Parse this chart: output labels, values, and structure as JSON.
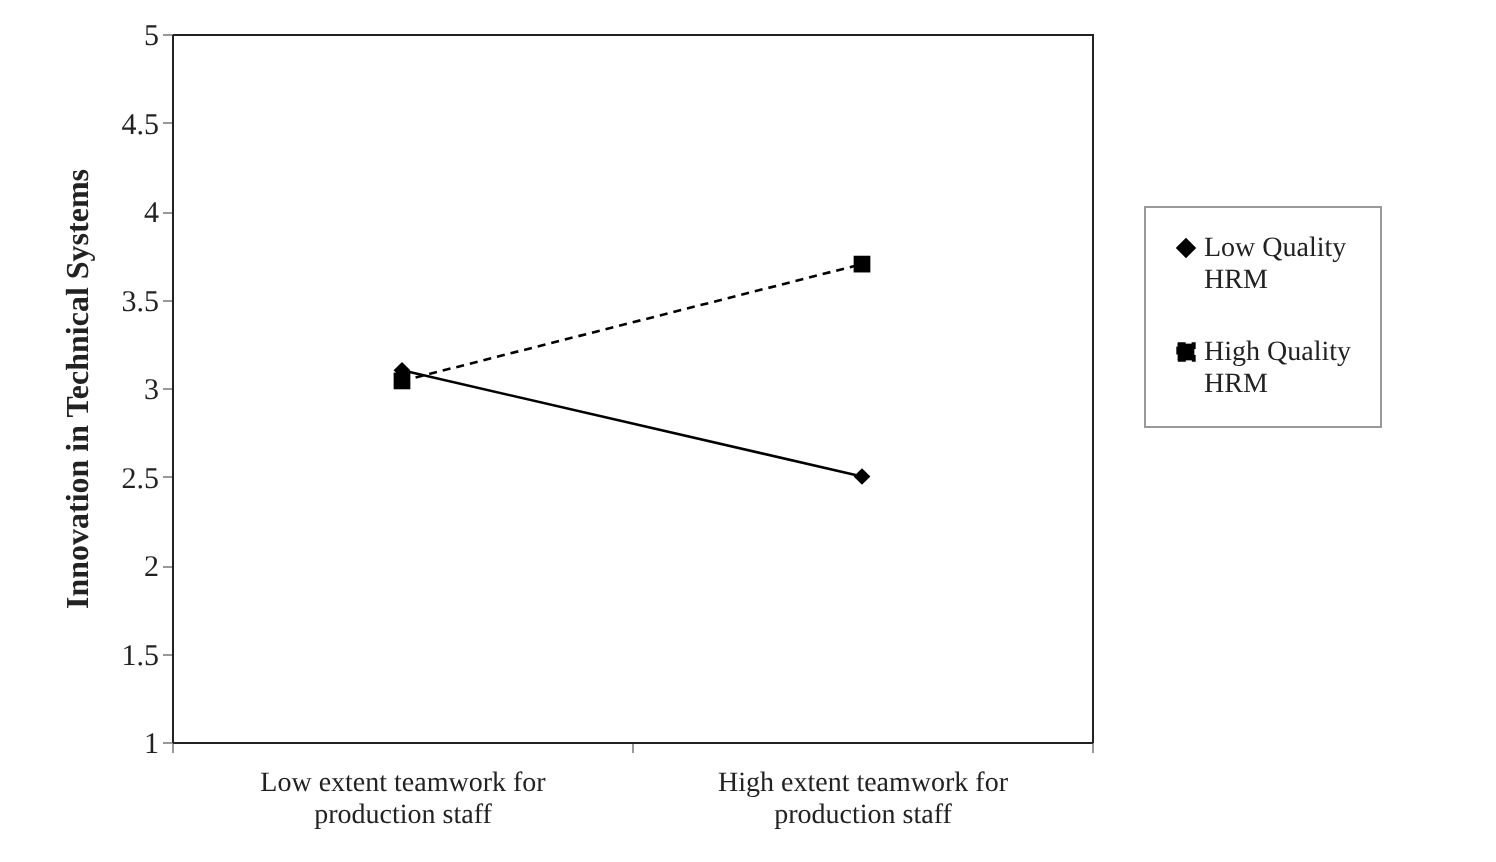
{
  "chart_data": {
    "type": "line",
    "ylabel": "Innovation in Technical Systems",
    "categories": [
      "Low extent teamwork for production staff",
      "High extent teamwork for production staff"
    ],
    "series": [
      {
        "name": "Low Quality HRM",
        "color": "#000000",
        "values": [
          3.1,
          2.5
        ],
        "marker": "diamond",
        "line_style": "solid"
      },
      {
        "name": "High Quality HRM",
        "color": "#000000",
        "values": [
          3.04,
          3.7
        ],
        "marker": "square",
        "line_style": "dashed"
      }
    ],
    "ylim": [
      1,
      5
    ],
    "yticks": [
      1,
      1.5,
      2,
      2.5,
      3,
      3.5,
      4,
      4.5,
      5
    ],
    "grid": false,
    "legend": "right"
  }
}
